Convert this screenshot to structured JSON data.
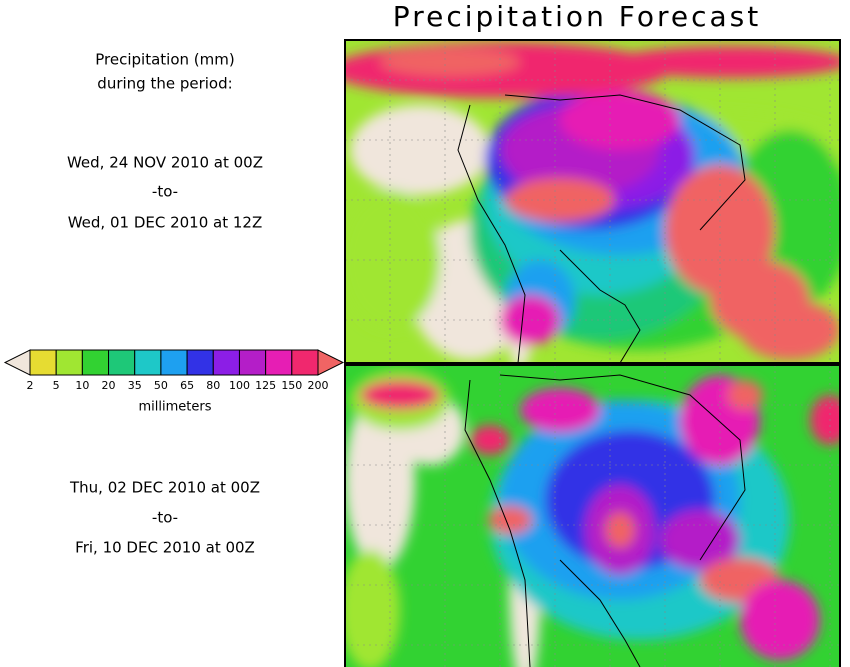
{
  "title": "Precipitation Forecast",
  "intro": [
    "Precipitation (mm)",
    "during the period:"
  ],
  "periods": [
    {
      "start": "Wed, 24 NOV 2010 at 00Z",
      "separator": "-to-",
      "end": "Wed, 01 DEC 2010 at 12Z"
    },
    {
      "start": "Thu, 02 DEC 2010 at 00Z",
      "separator": "-to-",
      "end": "Fri, 10 DEC 2010 at 00Z"
    }
  ],
  "legend": {
    "ticks": [
      2,
      5,
      10,
      20,
      35,
      50,
      65,
      80,
      100,
      125,
      150,
      200
    ],
    "unit": "millimeters",
    "below_color": "#f0e6dc",
    "colors": [
      "#e6dc32",
      "#a0e632",
      "#32d232",
      "#1ec878",
      "#1ec8c8",
      "#1ea0f0",
      "#3232e6",
      "#8c1ee6",
      "#b41ec8",
      "#e61eb4",
      "#f0286e"
    ],
    "above_color": "#f06464"
  }
}
